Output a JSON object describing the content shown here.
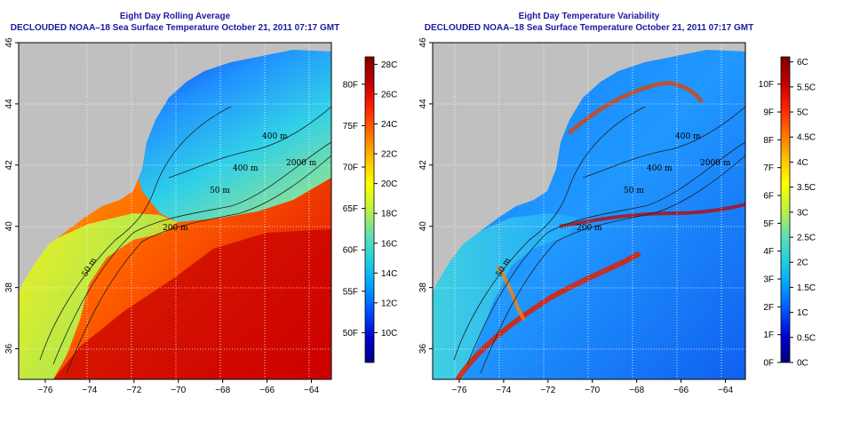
{
  "left_panel": {
    "title_line1": "Eight Day Rolling Average",
    "title_line2": "DECLOUDED NOAA–18 Sea Surface Temperature October 21, 2011 07:17 GMT",
    "colorbar": {
      "celsius_labels": [
        "28C",
        "26C",
        "24C",
        "22C",
        "20C",
        "18C",
        "16C",
        "14C",
        "12C",
        "10C"
      ],
      "celsius_values": [
        28,
        26,
        24,
        22,
        20,
        18,
        16,
        14,
        12,
        10
      ],
      "fahrenheit_labels": [
        "80F",
        "75F",
        "70F",
        "65F",
        "60F",
        "55F",
        "50F"
      ],
      "fahrenheit_values": [
        80,
        75,
        70,
        65,
        60,
        55,
        50
      ],
      "range_c": [
        8,
        28.5
      ],
      "colors": [
        "#000080",
        "#0000d0",
        "#0050ff",
        "#00a0ff",
        "#20d0e0",
        "#60e0b0",
        "#c0f040",
        "#ffff00",
        "#ffc000",
        "#ff7000",
        "#ff2000",
        "#c00000",
        "#800000"
      ]
    },
    "contour_labels": [
      "400 m",
      "400 m",
      "2000 m",
      "50 m",
      "200 m",
      "50 m"
    ]
  },
  "right_panel": {
    "title_line1": "Eight Day Temperature Variability",
    "title_line2": "DECLOUDED NOAA–18 Sea Surface Temperature October 21, 2011 07:17 GMT",
    "colorbar": {
      "celsius_labels": [
        "6C",
        "5.5C",
        "5C",
        "4.5C",
        "4C",
        "3.5C",
        "3C",
        "2.5C",
        "2C",
        "1.5C",
        "1C",
        "0.5C",
        "0C"
      ],
      "celsius_values": [
        6,
        5.5,
        5,
        4.5,
        4,
        3.5,
        3,
        2.5,
        2,
        1.5,
        1,
        0.5,
        0
      ],
      "fahrenheit_labels": [
        "10F",
        "9F",
        "8F",
        "7F",
        "6F",
        "5F",
        "4F",
        "3F",
        "2F",
        "1F",
        "0F"
      ],
      "fahrenheit_values": [
        10,
        9,
        8,
        7,
        6,
        5,
        4,
        3,
        2,
        1,
        0
      ],
      "range_c": [
        0,
        6.1
      ],
      "colors": [
        "#000080",
        "#0000d0",
        "#0050ff",
        "#00a0ff",
        "#20d0e0",
        "#60e0b0",
        "#c0f040",
        "#ffff00",
        "#ffc000",
        "#ff7000",
        "#ff2000",
        "#c00000",
        "#800000"
      ]
    },
    "contour_labels": [
      "400 m",
      "2000 m",
      "400 m",
      "50 m",
      "200 m",
      "50 m"
    ]
  },
  "map": {
    "lon_ticks": [
      "−76",
      "−74",
      "−72",
      "−70",
      "−68",
      "−66",
      "−64"
    ],
    "lon_values": [
      -76,
      -74,
      -72,
      -70,
      -68,
      -66,
      -64
    ],
    "lat_ticks": [
      "36",
      "38",
      "40",
      "42",
      "44",
      "46"
    ],
    "lat_values": [
      36,
      38,
      40,
      42,
      44,
      46
    ],
    "lon_range": [
      -77.2,
      -63.1
    ],
    "lat_range": [
      35,
      46
    ],
    "land_color": "#c0c0c0",
    "grid_lines": true
  }
}
